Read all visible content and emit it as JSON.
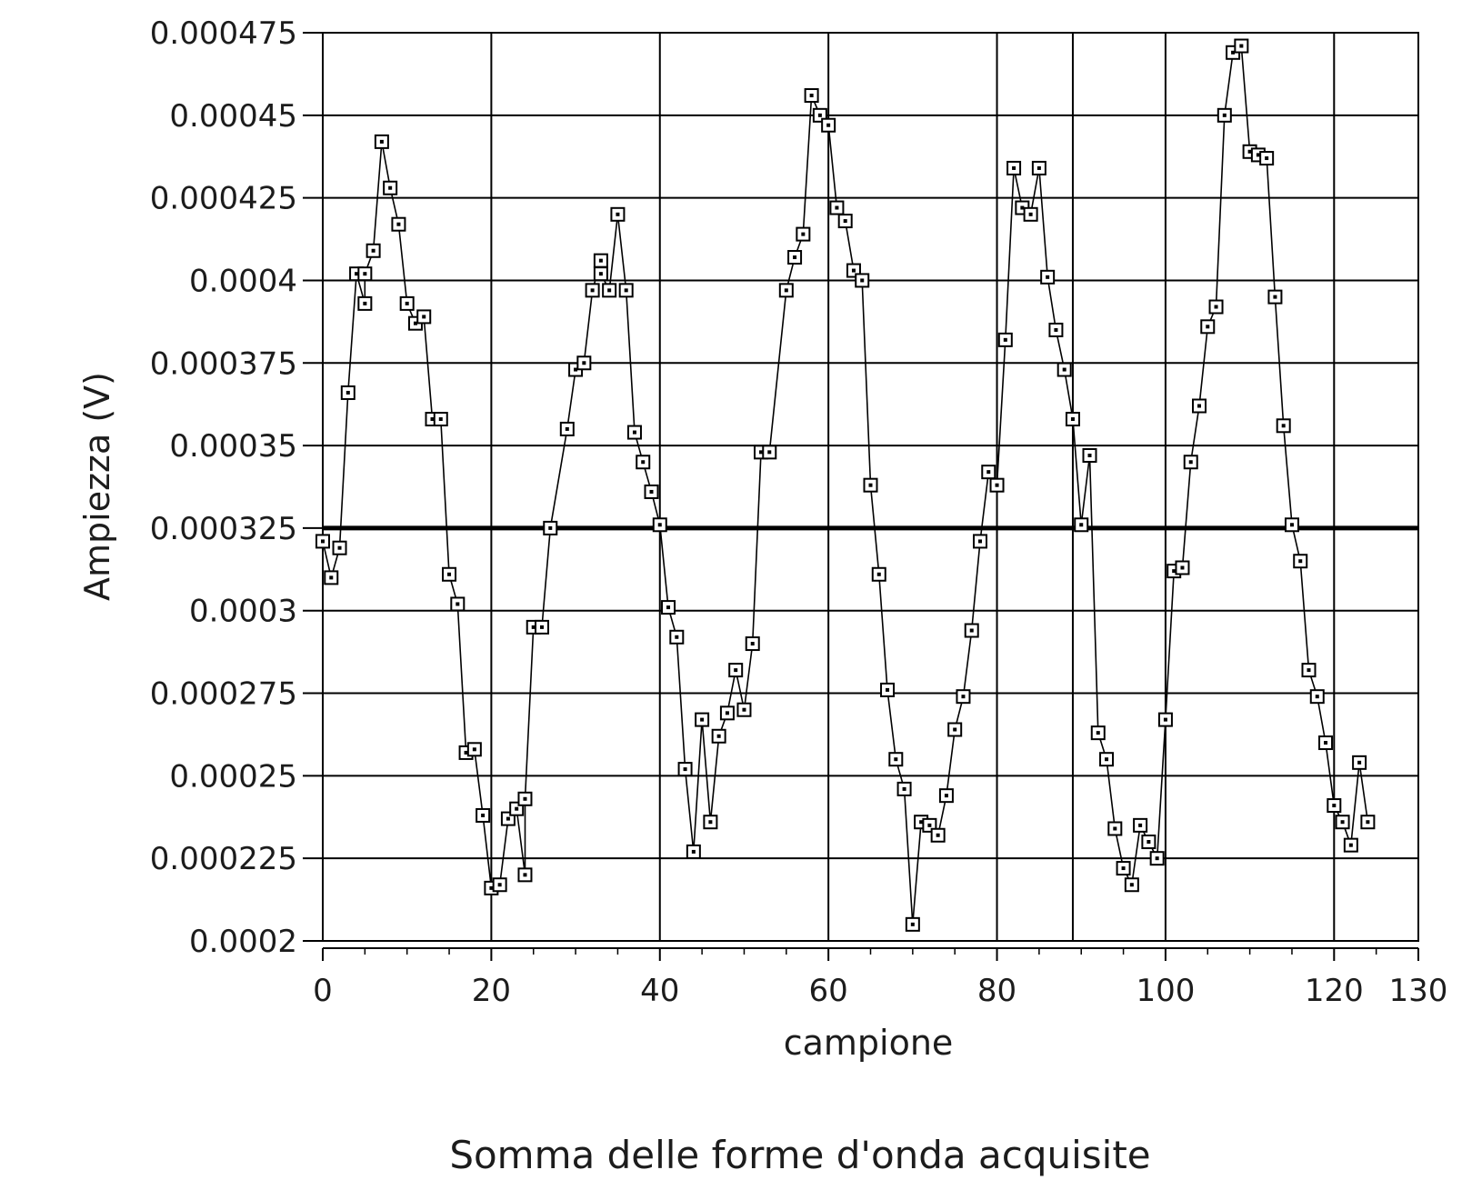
{
  "chart_data": {
    "type": "line",
    "title": "Somma delle forme d'onda acquisite",
    "xlabel": "campione",
    "ylabel": "Ampiezza (V)",
    "xlim": [
      0,
      130
    ],
    "ylim": [
      0.0002,
      0.000475
    ],
    "x_ticks": [
      "0",
      "20",
      "40",
      "60",
      "80",
      "100",
      "120",
      "130"
    ],
    "y_ticks": [
      "0.0002",
      "0.000225",
      "0.00025",
      "0.000275",
      "0.0003",
      "0.000325",
      "0.00035",
      "0.000375",
      "0.0004",
      "0.000425",
      "0.00045",
      "0.000475"
    ],
    "x_tick_values": [
      0,
      20,
      40,
      60,
      80,
      100,
      120,
      130
    ],
    "y_tick_values": [
      0.0002,
      0.000225,
      0.00025,
      0.000275,
      0.0003,
      0.000325,
      0.00035,
      0.000375,
      0.0004,
      0.000425,
      0.00045,
      0.000475
    ],
    "x_gridlines": [
      20,
      40,
      60,
      80,
      89,
      100,
      120
    ],
    "grid": true,
    "reference_line": 0.000325,
    "marker": "square",
    "series": [
      {
        "x": [
          0,
          1,
          2,
          3,
          4,
          5,
          5,
          6,
          7,
          8,
          9,
          10,
          11,
          12,
          13,
          14,
          15,
          16,
          17,
          18,
          19,
          20,
          21,
          22,
          23,
          24,
          24,
          25,
          26,
          27,
          29,
          30,
          31,
          32,
          33,
          33,
          34,
          35,
          36,
          37,
          38,
          39,
          40,
          41,
          42,
          43,
          44,
          45,
          46,
          47,
          48,
          49,
          50,
          51,
          52,
          53,
          55,
          56,
          57,
          58,
          59,
          60,
          61,
          62,
          63,
          64,
          65,
          66,
          67,
          68,
          69,
          70,
          71,
          72,
          73,
          74,
          75,
          76,
          77,
          78,
          79,
          80,
          81,
          82,
          83,
          84,
          85,
          86,
          87,
          88,
          89,
          90,
          91,
          92,
          93,
          94,
          95,
          96,
          97,
          98,
          99,
          100,
          101,
          102,
          103,
          104,
          105,
          106,
          107,
          108,
          109,
          110,
          111,
          112,
          113,
          114,
          115,
          116,
          117,
          118,
          119,
          120,
          121,
          122,
          123,
          124
        ],
        "y": [
          0.000321,
          0.00031,
          0.000319,
          0.000366,
          0.000402,
          0.000393,
          0.000402,
          0.000409,
          0.000442,
          0.000428,
          0.000417,
          0.000393,
          0.000387,
          0.000389,
          0.000358,
          0.000358,
          0.000311,
          0.000302,
          0.000257,
          0.000258,
          0.000238,
          0.000216,
          0.000217,
          0.000237,
          0.00024,
          0.00022,
          0.000243,
          0.000295,
          0.000295,
          0.000325,
          0.000355,
          0.000373,
          0.000375,
          0.000397,
          0.000406,
          0.000402,
          0.000397,
          0.00042,
          0.000397,
          0.000354,
          0.000345,
          0.000336,
          0.000326,
          0.000301,
          0.000292,
          0.000252,
          0.000227,
          0.000267,
          0.000236,
          0.000262,
          0.000269,
          0.000282,
          0.00027,
          0.00029,
          0.000348,
          0.000348,
          0.000397,
          0.000407,
          0.000414,
          0.000456,
          0.00045,
          0.000447,
          0.000422,
          0.000418,
          0.000403,
          0.0004,
          0.000338,
          0.000311,
          0.000276,
          0.000255,
          0.000246,
          0.000205,
          0.000236,
          0.000235,
          0.000232,
          0.000244,
          0.000264,
          0.000274,
          0.000294,
          0.000321,
          0.000342,
          0.000338,
          0.000382,
          0.000434,
          0.000422,
          0.00042,
          0.000434,
          0.000401,
          0.000385,
          0.000373,
          0.000358,
          0.000326,
          0.000347,
          0.000263,
          0.000255,
          0.000234,
          0.000222,
          0.000217,
          0.000235,
          0.00023,
          0.000225,
          0.000267,
          0.000312,
          0.000313,
          0.000345,
          0.000362,
          0.000386,
          0.000392,
          0.00045,
          0.000469,
          0.000471,
          0.000439,
          0.000438,
          0.000437,
          0.000395,
          0.000356,
          0.000326,
          0.000315,
          0.000282,
          0.000274,
          0.00026,
          0.000241,
          0.000236,
          0.000229,
          0.000254,
          0.000236
        ]
      }
    ]
  }
}
